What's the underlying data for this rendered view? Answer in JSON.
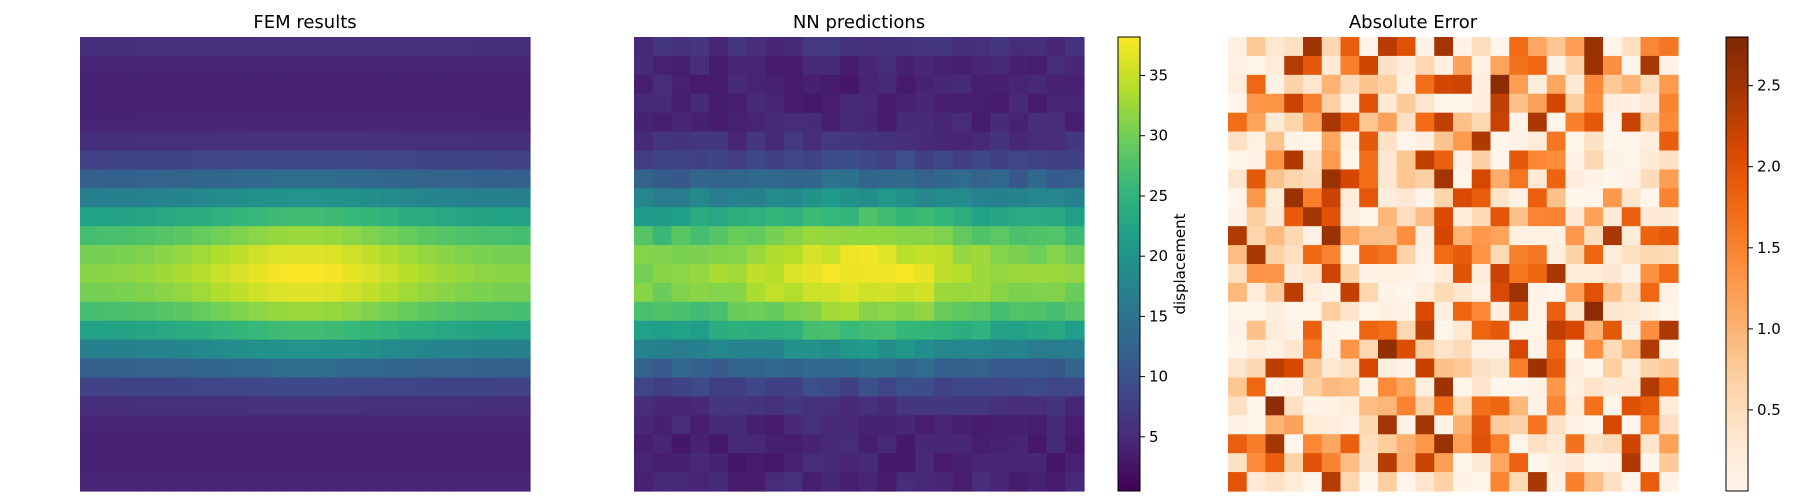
{
  "chart_data": [
    {
      "type": "heatmap",
      "title": "FEM results",
      "grid_size": [
        24,
        24
      ],
      "colormap": "viridis",
      "value_range": [
        0.5,
        38.2
      ],
      "model": {
        "description": "u(r,c) estimated from image: 4 + 34*((1+cos(2*pi*(r-12)/19))/2)^1.6 * (0.80 + 0.20*exp(-((c-11.5)/6)^2))",
        "axis_rows": "vertical index 0 (top) to 23 (bottom)",
        "axis_cols": "horizontal index 0 (left) to 23 (right)"
      }
    },
    {
      "type": "heatmap",
      "title": "NN predictions",
      "grid_size": [
        24,
        24
      ],
      "colormap": "viridis",
      "value_range": [
        0.5,
        38.2
      ],
      "note": "visually near-identical to FEM results"
    },
    {
      "type": "heatmap",
      "title": "Absolute Error",
      "grid_size": [
        24,
        24
      ],
      "colormap": "oranges",
      "value_range": [
        0.0,
        2.8
      ],
      "note": "cell values pseudo-random in [0, 2.8], mostly low with scattered peaks"
    }
  ],
  "colorbars": [
    {
      "label": "displacement",
      "min": 0.5,
      "max": 38.2,
      "ticks": [
        5,
        10,
        15,
        20,
        25,
        30,
        35
      ],
      "colormap": "viridis"
    },
    {
      "label": "",
      "min": 0.0,
      "max": 2.8,
      "ticks": [
        0.5,
        1.0,
        1.5,
        2.0,
        2.5
      ],
      "colormap": "oranges"
    }
  ],
  "labels": {
    "fem_title": "FEM results",
    "nn_title": "NN predictions",
    "err_title": "Absolute Error",
    "cb1_label": "displacement",
    "cb1_ticks": [
      "5",
      "10",
      "15",
      "20",
      "25",
      "30",
      "35"
    ],
    "cb2_ticks": [
      "0.5",
      "1.0",
      "1.5",
      "2.0",
      "2.5"
    ]
  },
  "colors": {
    "viridis": [
      "#440154",
      "#482878",
      "#3e4989",
      "#31688e",
      "#26828e",
      "#1f9e89",
      "#35b779",
      "#6ece58",
      "#b5de2b",
      "#fde725"
    ],
    "oranges": [
      "#fff5eb",
      "#fee6ce",
      "#fdd0a2",
      "#fdae6b",
      "#fd8d3c",
      "#f16913",
      "#d94801",
      "#a63603",
      "#7f2704"
    ]
  }
}
